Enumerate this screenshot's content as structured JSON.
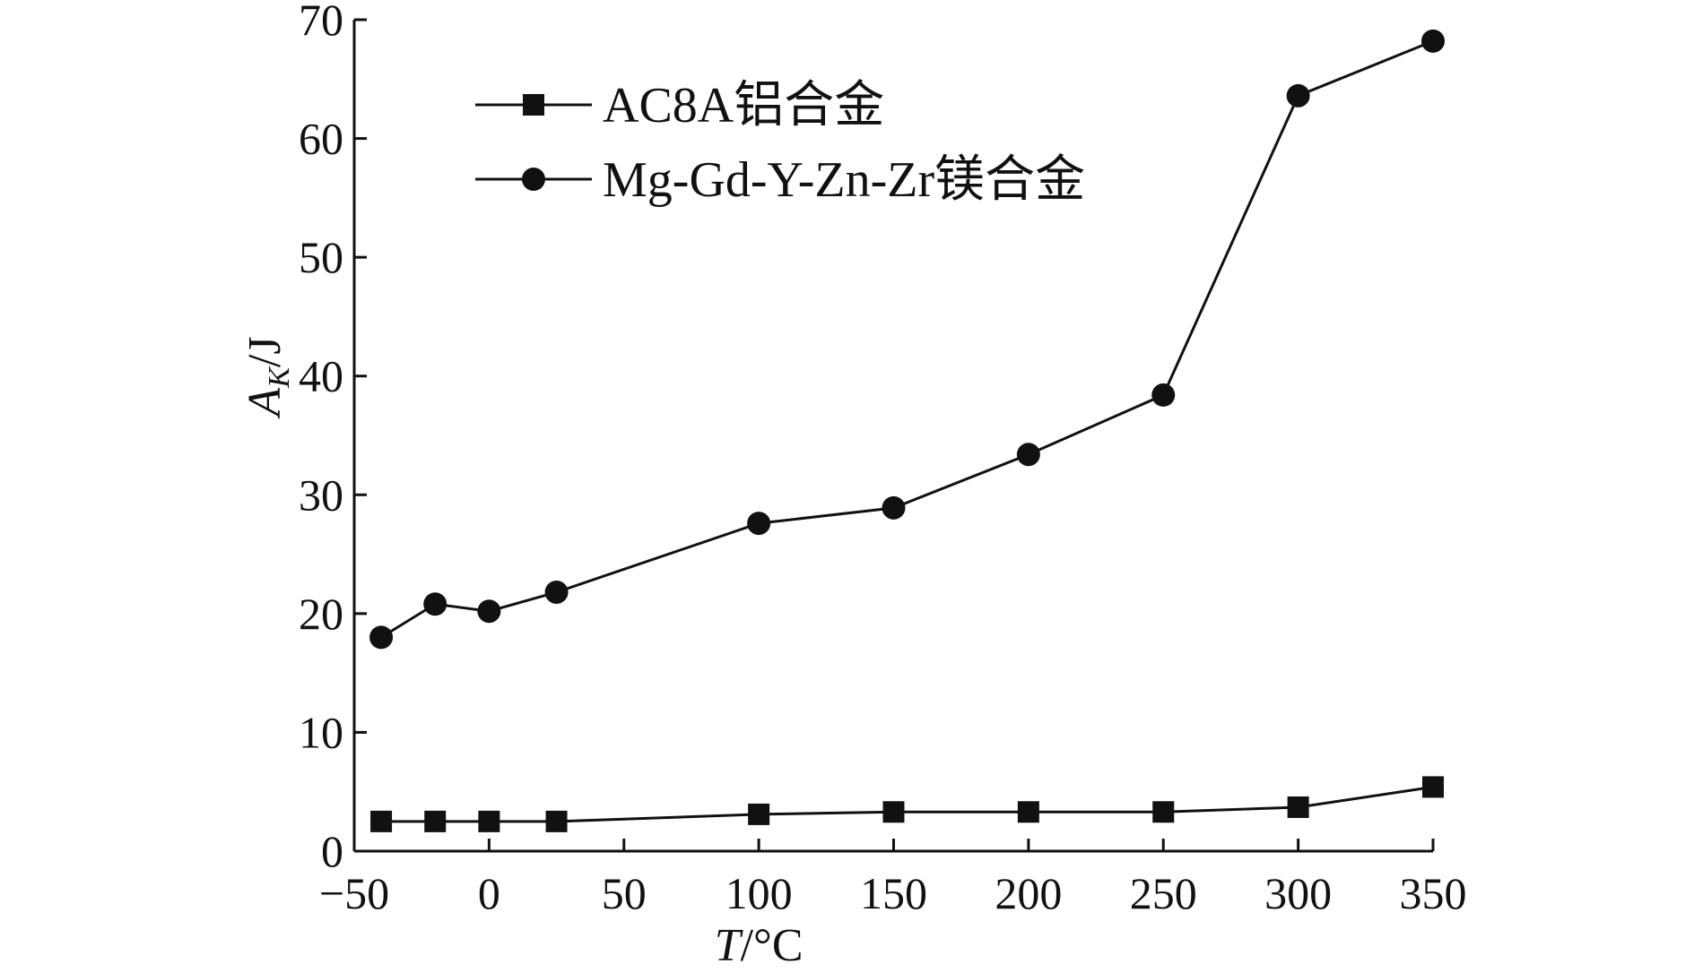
{
  "chart_data": {
    "type": "line",
    "xlabel": "T/°C",
    "ylabel": "A_K/J",
    "xlim": [
      -50,
      350
    ],
    "ylim": [
      0,
      70
    ],
    "xticks": [
      -50,
      0,
      50,
      100,
      150,
      200,
      250,
      300,
      350
    ],
    "yticks": [
      0,
      10,
      20,
      30,
      40,
      50,
      60,
      70
    ],
    "xtick_labels": [
      "−50",
      "0",
      "50",
      "100",
      "150",
      "200",
      "250",
      "300",
      "350"
    ],
    "ytick_labels": [
      "0",
      "10",
      "20",
      "30",
      "40",
      "50",
      "60",
      "70"
    ],
    "grid": false,
    "legend_position": "top-left",
    "series": [
      {
        "name": "AC8A铝合金",
        "marker": "square",
        "color": "#111111",
        "x": [
          -40,
          -20,
          0,
          25,
          100,
          150,
          200,
          250,
          300,
          350
        ],
        "values": [
          2.5,
          2.5,
          2.5,
          2.5,
          3.1,
          3.3,
          3.3,
          3.3,
          3.7,
          5.4
        ]
      },
      {
        "name": "Mg-Gd-Y-Zn-Zr镁合金",
        "marker": "circle",
        "color": "#111111",
        "x": [
          -40,
          -20,
          0,
          25,
          100,
          150,
          200,
          250,
          300,
          350
        ],
        "values": [
          18.0,
          20.8,
          20.2,
          21.8,
          27.6,
          28.9,
          33.4,
          38.4,
          63.6,
          68.2
        ]
      }
    ]
  }
}
